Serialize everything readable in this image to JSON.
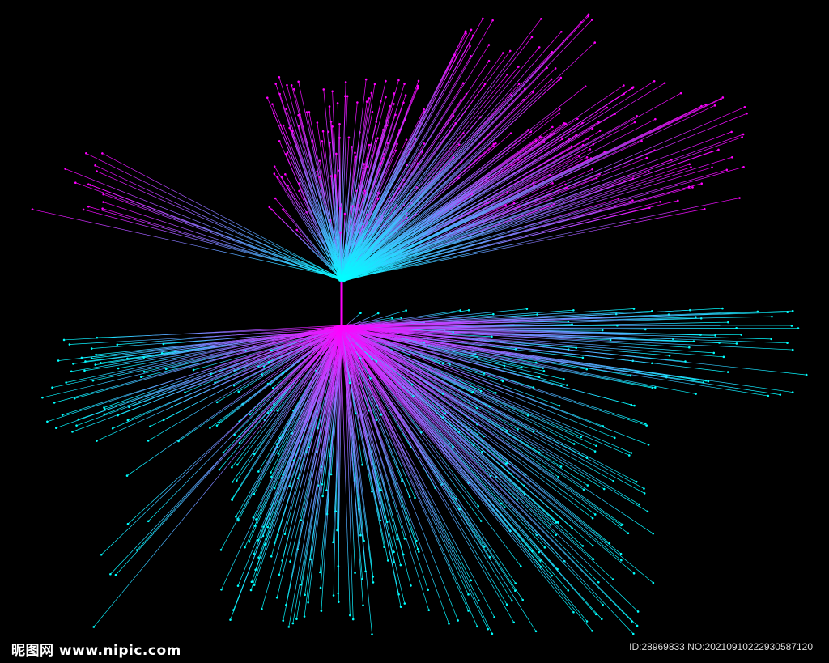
{
  "graphic": {
    "description_colors": {
      "root_upper": "#00ffff",
      "tip_upper": "#ff00ff",
      "root_lower": "#ff00ff",
      "tip_lower": "#00ffff",
      "background": "#000000"
    }
  },
  "watermark": {
    "logo_text": "昵图网 www.nipic.com",
    "id_text": "ID:28969833 NO:20210910222930587120"
  }
}
